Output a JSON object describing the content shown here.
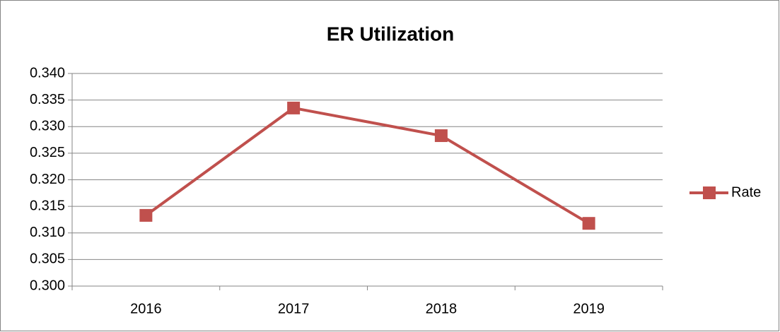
{
  "chart_data": {
    "type": "line",
    "title": "ER Utilization",
    "categories": [
      "2016",
      "2017",
      "2018",
      "2019"
    ],
    "series": [
      {
        "name": "Rate",
        "color": "#c0504d",
        "values": [
          0.3133,
          0.3335,
          0.3283,
          0.3118
        ]
      }
    ],
    "ylim": [
      0.3,
      0.34
    ],
    "yticks": [
      {
        "value": 0.3,
        "label": "0.300"
      },
      {
        "value": 0.305,
        "label": "0.305"
      },
      {
        "value": 0.31,
        "label": "0.310"
      },
      {
        "value": 0.315,
        "label": "0.315"
      },
      {
        "value": 0.32,
        "label": "0.320"
      },
      {
        "value": 0.325,
        "label": "0.325"
      },
      {
        "value": 0.33,
        "label": "0.330"
      },
      {
        "value": 0.335,
        "label": "0.335"
      },
      {
        "value": 0.34,
        "label": "0.340"
      }
    ],
    "grid": true,
    "legend": "right"
  }
}
